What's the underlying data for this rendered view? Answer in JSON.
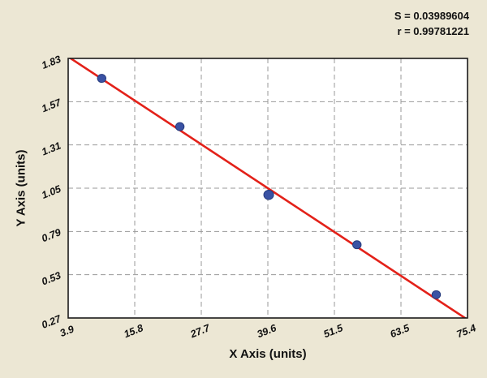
{
  "stats": {
    "s_label": "S = 0.03989604",
    "r_label": "r = 0.99781221"
  },
  "chart_data": {
    "type": "scatter",
    "title": "",
    "xlabel": "X Axis (units)",
    "ylabel": "Y Axis (units)",
    "xlim": [
      3.9,
      75.4
    ],
    "ylim": [
      0.27,
      1.83
    ],
    "x_ticks": [
      3.9,
      15.8,
      27.7,
      39.6,
      51.5,
      63.5,
      75.4
    ],
    "y_ticks": [
      0.27,
      0.53,
      0.79,
      1.05,
      1.31,
      1.57,
      1.83
    ],
    "x_tick_labels": [
      "3.9",
      "15.8",
      "27.7",
      "39.6",
      "51.5",
      "63.5",
      "75.4"
    ],
    "y_tick_labels": [
      "0.27",
      "0.53",
      "0.79",
      "1.05",
      "1.31",
      "1.57",
      "1.83"
    ],
    "grid": "dashed",
    "legend": "none",
    "points": [
      {
        "x": 9.9,
        "y": 1.71
      },
      {
        "x": 23.9,
        "y": 1.42
      },
      {
        "x": 39.8,
        "y": 1.01,
        "size": 6
      },
      {
        "x": 55.6,
        "y": 0.71
      },
      {
        "x": 69.8,
        "y": 0.41
      }
    ],
    "fit_line": {
      "x1": 3.9,
      "y1": 1.84,
      "x2": 75.4,
      "y2": 0.26
    },
    "fit_stats": {
      "S": 0.03989604,
      "r": 0.99781221
    },
    "colors": {
      "page_bg": "#ece7d4",
      "plot_bg": "#ffffff",
      "grid": "#9a9a9a",
      "border": "#1a1a1a",
      "line": "#e32119",
      "point": "#3a52a4",
      "point_edge": "#253a7d",
      "text": "#111111"
    }
  }
}
